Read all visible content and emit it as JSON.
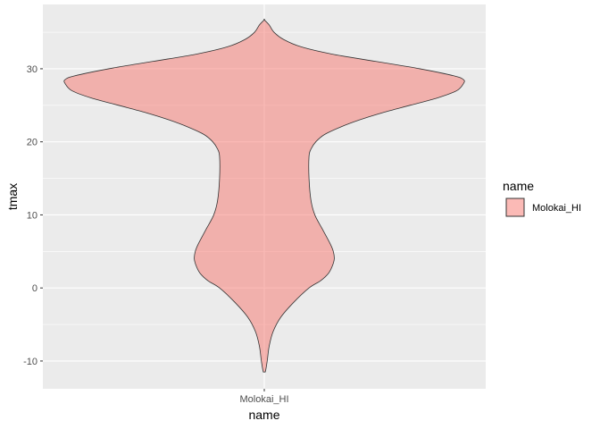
{
  "chart_data": {
    "type": "violin",
    "xlabel": "name",
    "ylabel": "tmax",
    "categories": [
      "Molokai_HI"
    ],
    "ylim": [
      -13.8,
      38.8
    ],
    "yticks": [
      -10,
      0,
      10,
      20,
      30
    ],
    "grid": true,
    "legend": {
      "title": "name",
      "position": "right",
      "entries": [
        "Molokai_HI"
      ]
    },
    "series": [
      {
        "category": "Molokai_HI",
        "fill": "#f8766d",
        "y_min": -11.5,
        "y_max": 36.7,
        "density_profile": [
          [
            -11.5,
            0.01
          ],
          [
            -10,
            0.03
          ],
          [
            -8,
            0.05
          ],
          [
            -6,
            0.09
          ],
          [
            -4,
            0.17
          ],
          [
            -2,
            0.3
          ],
          [
            0,
            0.46
          ],
          [
            1,
            0.58
          ],
          [
            2,
            0.66
          ],
          [
            3,
            0.7
          ],
          [
            4,
            0.72
          ],
          [
            5,
            0.71
          ],
          [
            6,
            0.68
          ],
          [
            8,
            0.6
          ],
          [
            10,
            0.52
          ],
          [
            12,
            0.48
          ],
          [
            15,
            0.46
          ],
          [
            18,
            0.46
          ],
          [
            19,
            0.48
          ],
          [
            20,
            0.53
          ],
          [
            21,
            0.62
          ],
          [
            22,
            0.78
          ],
          [
            23,
            0.98
          ],
          [
            24,
            1.22
          ],
          [
            25,
            1.5
          ],
          [
            26,
            1.78
          ],
          [
            27,
            1.98
          ],
          [
            28,
            2.05
          ],
          [
            28.5,
            2.05
          ],
          [
            29,
            1.96
          ],
          [
            30,
            1.6
          ],
          [
            31,
            1.15
          ],
          [
            32,
            0.7
          ],
          [
            33,
            0.38
          ],
          [
            34,
            0.2
          ],
          [
            35,
            0.1
          ],
          [
            36,
            0.05
          ],
          [
            36.7,
            0.0
          ]
        ]
      }
    ]
  }
}
